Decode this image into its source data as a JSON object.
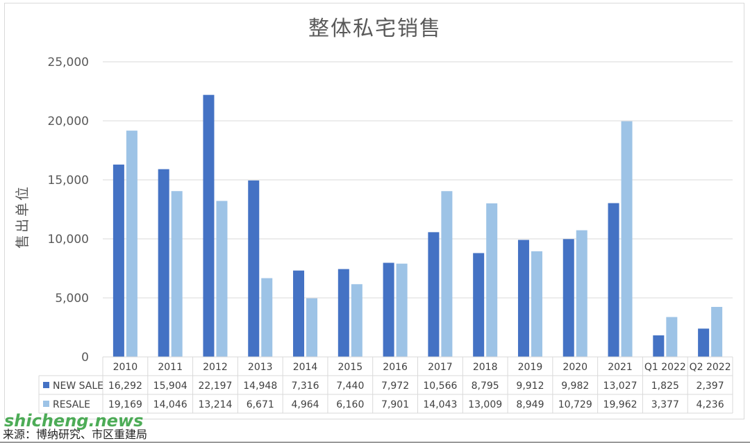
{
  "chart_data": {
    "type": "bar",
    "title": "整体私宅销售",
    "xlabel": "",
    "ylabel": "售出单位",
    "ylim": [
      0,
      25000
    ],
    "yticks": [
      "0",
      "5,000",
      "10,000",
      "15,000",
      "20,000",
      "25,000"
    ],
    "ytick_values": [
      0,
      5000,
      10000,
      15000,
      20000,
      25000
    ],
    "categories": [
      "2010",
      "2011",
      "2012",
      "2013",
      "2014",
      "2015",
      "2016",
      "2017",
      "2018",
      "2019",
      "2020",
      "2021",
      "Q1 2022",
      "Q2 2022"
    ],
    "grid": true,
    "legend": "data-table",
    "series": [
      {
        "name": "NEW SALE",
        "color": "#4472c4",
        "values": [
          16292,
          15904,
          22197,
          14948,
          7316,
          7440,
          7972,
          10566,
          8795,
          9912,
          9982,
          13027,
          1825,
          2397
        ],
        "labels": [
          "16,292",
          "15,904",
          "22,197",
          "14,948",
          "7,316",
          "7,440",
          "7,972",
          "10,566",
          "8,795",
          "9,912",
          "9,982",
          "13,027",
          "1,825",
          "2,397"
        ]
      },
      {
        "name": "RESALE",
        "color": "#9dc3e6",
        "values": [
          19169,
          14046,
          13214,
          6671,
          4964,
          6160,
          7901,
          14043,
          13009,
          8949,
          10729,
          19962,
          3377,
          4236
        ],
        "labels": [
          "19,169",
          "14,046",
          "13,214",
          "6,671",
          "4,964",
          "6,160",
          "7,901",
          "14,043",
          "13,009",
          "8,949",
          "10,729",
          "19,962",
          "3,377",
          "4,236"
        ]
      }
    ]
  },
  "source_note": "来源：博纳研究、市区重建局",
  "watermark": "shicheng.news",
  "colors": {
    "grid": "#d9d9d9",
    "text": "#595959"
  }
}
